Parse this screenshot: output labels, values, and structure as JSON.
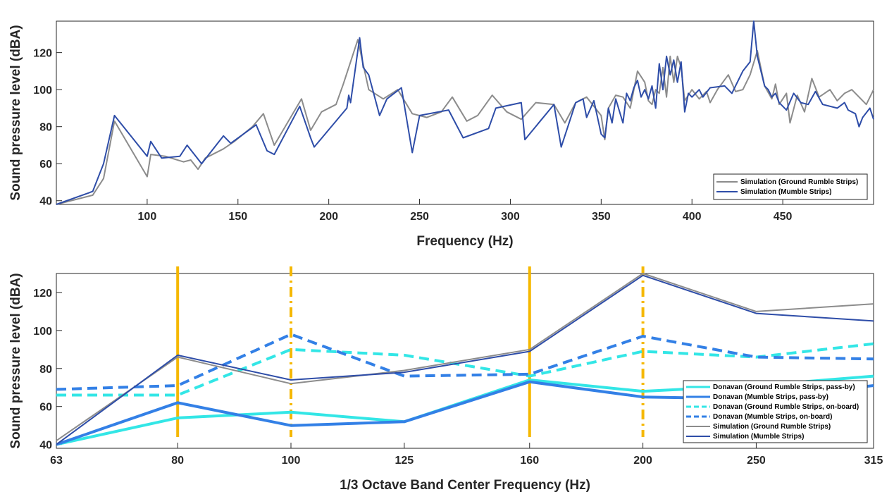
{
  "chart_data": [
    {
      "type": "line",
      "xlabel": "Frequency (Hz)",
      "ylabel": "Sound pressure level (dBA)",
      "xlim": [
        50,
        500
      ],
      "ylim": [
        38,
        137
      ],
      "xticks": [
        100,
        150,
        200,
        250,
        300,
        350,
        400,
        450
      ],
      "yticks": [
        40,
        60,
        80,
        100,
        120
      ],
      "legend_position": "bottom-right",
      "series": [
        {
          "name": "Simulation (Ground Rumble Strips)",
          "color": "#8c8c8c",
          "points": [
            [
              50,
              38
            ],
            [
              70,
              43
            ],
            [
              76,
              52
            ],
            [
              82,
              83
            ],
            [
              100,
              53
            ],
            [
              102,
              65
            ],
            [
              110,
              64
            ],
            [
              120,
              61
            ],
            [
              124,
              62
            ],
            [
              128,
              57
            ],
            [
              132,
              63
            ],
            [
              142,
              68
            ],
            [
              148,
              72
            ],
            [
              158,
              80
            ],
            [
              164,
              87
            ],
            [
              170,
              70
            ],
            [
              185,
              95
            ],
            [
              190,
              78
            ],
            [
              196,
              88
            ],
            [
              204,
              92
            ],
            [
              208,
              103
            ],
            [
              216,
              127
            ],
            [
              222,
              100
            ],
            [
              230,
              95
            ],
            [
              238,
              100
            ],
            [
              246,
              87
            ],
            [
              254,
              85
            ],
            [
              262,
              88
            ],
            [
              268,
              96
            ],
            [
              276,
              83
            ],
            [
              282,
              86
            ],
            [
              290,
              97
            ],
            [
              298,
              88
            ],
            [
              306,
              84
            ],
            [
              314,
              93
            ],
            [
              324,
              92
            ],
            [
              330,
              82
            ],
            [
              336,
              93
            ],
            [
              342,
              96
            ],
            [
              350,
              86
            ],
            [
              352,
              73
            ],
            [
              354,
              90
            ],
            [
              358,
              97
            ],
            [
              362,
              96
            ],
            [
              366,
              90
            ],
            [
              370,
              110
            ],
            [
              374,
              104
            ],
            [
              376,
              94
            ],
            [
              378,
              92
            ],
            [
              380,
              100
            ],
            [
              382,
              98
            ],
            [
              384,
              112
            ],
            [
              386,
              96
            ],
            [
              388,
              118
            ],
            [
              390,
              104
            ],
            [
              392,
              118
            ],
            [
              394,
              112
            ],
            [
              396,
              94
            ],
            [
              400,
              100
            ],
            [
              404,
              95
            ],
            [
              408,
              99
            ],
            [
              410,
              93
            ],
            [
              414,
              100
            ],
            [
              420,
              108
            ],
            [
              424,
              99
            ],
            [
              428,
              100
            ],
            [
              432,
              108
            ],
            [
              436,
              121
            ],
            [
              440,
              102
            ],
            [
              444,
              95
            ],
            [
              446,
              103
            ],
            [
              448,
              92
            ],
            [
              452,
              98
            ],
            [
              454,
              82
            ],
            [
              458,
              97
            ],
            [
              462,
              88
            ],
            [
              466,
              106
            ],
            [
              470,
              96
            ],
            [
              476,
              100
            ],
            [
              480,
              94
            ],
            [
              484,
              98
            ],
            [
              488,
              100
            ],
            [
              492,
              96
            ],
            [
              496,
              92
            ],
            [
              500,
              100
            ]
          ]
        },
        {
          "name": "Simulation (Mumble Strips)",
          "color": "#2e4da8",
          "points": [
            [
              50,
              38
            ],
            [
              70,
              45
            ],
            [
              76,
              60
            ],
            [
              82,
              86
            ],
            [
              100,
              64
            ],
            [
              102,
              72
            ],
            [
              108,
              63
            ],
            [
              118,
              64
            ],
            [
              122,
              70
            ],
            [
              130,
              60
            ],
            [
              142,
              75
            ],
            [
              146,
              71
            ],
            [
              160,
              81
            ],
            [
              166,
              67
            ],
            [
              170,
              65
            ],
            [
              184,
              91
            ],
            [
              190,
              74
            ],
            [
              192,
              69
            ],
            [
              210,
              90
            ],
            [
              211,
              97
            ],
            [
              212,
              93
            ],
            [
              217,
              128
            ],
            [
              219,
              112
            ],
            [
              222,
              108
            ],
            [
              228,
              86
            ],
            [
              232,
              95
            ],
            [
              240,
              101
            ],
            [
              246,
              66
            ],
            [
              250,
              86
            ],
            [
              266,
              89
            ],
            [
              274,
              74
            ],
            [
              288,
              79
            ],
            [
              292,
              90
            ],
            [
              306,
              93
            ],
            [
              308,
              73
            ],
            [
              324,
              92
            ],
            [
              328,
              69
            ],
            [
              336,
              93
            ],
            [
              340,
              95
            ],
            [
              342,
              85
            ],
            [
              346,
              94
            ],
            [
              350,
              76
            ],
            [
              352,
              74
            ],
            [
              354,
              90
            ],
            [
              356,
              82
            ],
            [
              358,
              95
            ],
            [
              362,
              82
            ],
            [
              364,
              98
            ],
            [
              366,
              94
            ],
            [
              368,
              101
            ],
            [
              370,
              105
            ],
            [
              372,
              96
            ],
            [
              374,
              100
            ],
            [
              376,
              95
            ],
            [
              378,
              102
            ],
            [
              380,
              90
            ],
            [
              382,
              114
            ],
            [
              384,
              100
            ],
            [
              386,
              118
            ],
            [
              388,
              108
            ],
            [
              390,
              116
            ],
            [
              392,
              104
            ],
            [
              394,
              115
            ],
            [
              396,
              88
            ],
            [
              398,
              98
            ],
            [
              400,
              96
            ],
            [
              404,
              100
            ],
            [
              406,
              96
            ],
            [
              410,
              101
            ],
            [
              418,
              102
            ],
            [
              422,
              98
            ],
            [
              428,
              110
            ],
            [
              432,
              115
            ],
            [
              434,
              137
            ],
            [
              436,
              118
            ],
            [
              440,
              102
            ],
            [
              442,
              100
            ],
            [
              444,
              96
            ],
            [
              446,
              98
            ],
            [
              448,
              93
            ],
            [
              452,
              89
            ],
            [
              456,
              98
            ],
            [
              460,
              93
            ],
            [
              464,
              92
            ],
            [
              468,
              99
            ],
            [
              472,
              92
            ],
            [
              480,
              90
            ],
            [
              484,
              93
            ],
            [
              486,
              89
            ],
            [
              490,
              87
            ],
            [
              492,
              80
            ],
            [
              494,
              85
            ],
            [
              498,
              90
            ],
            [
              500,
              84
            ]
          ]
        }
      ]
    },
    {
      "type": "line",
      "xlabel": "1/3 Octave Band Center Frequency (Hz)",
      "ylabel": "Sound pressure level (dBA)",
      "categories": [
        "63",
        "80",
        "100",
        "125",
        "160",
        "200",
        "250",
        "315"
      ],
      "ylim": [
        38,
        130
      ],
      "yticks": [
        40,
        60,
        80,
        100,
        120
      ],
      "legend_position": "bottom-right",
      "vertical_markers": [
        {
          "x": "80",
          "style": "solid",
          "color": "#f5b800"
        },
        {
          "x": "100",
          "style": "dashdot",
          "color": "#f5b800"
        },
        {
          "x": "160",
          "style": "solid",
          "color": "#f5b800"
        },
        {
          "x": "200",
          "style": "dashdot",
          "color": "#f5b800"
        }
      ],
      "series": [
        {
          "name": "Donavan (Ground Rumble Strips, pass-by)",
          "color": "#33e6e6",
          "style": "solid",
          "width": 4,
          "values": [
            40,
            54,
            57,
            52,
            74,
            68,
            71,
            76
          ]
        },
        {
          "name": "Donavan (Mumble Strips, pass-by)",
          "color": "#3380e6",
          "style": "solid",
          "width": 4,
          "values": [
            40,
            62,
            50,
            52,
            73,
            65,
            64,
            71
          ]
        },
        {
          "name": "Donavan (Ground Rumble Strips, on-board)",
          "color": "#33e6e6",
          "style": "dashed",
          "width": 4,
          "values": [
            66,
            66,
            90,
            87,
            76,
            89,
            86,
            93
          ]
        },
        {
          "name": "Donavan (Mumble Strips, on-board)",
          "color": "#3380e6",
          "style": "dashed",
          "width": 4,
          "values": [
            69,
            71,
            98,
            76,
            77,
            97,
            86,
            85
          ]
        },
        {
          "name": "Simulation (Ground Rumble Strips)",
          "color": "#8c8c8c",
          "style": "solid",
          "width": 2,
          "values": [
            42,
            86,
            72,
            79,
            90,
            130,
            110,
            114
          ]
        },
        {
          "name": "Simulation (Mumble Strips)",
          "color": "#2e4da8",
          "style": "solid",
          "width": 2,
          "values": [
            40,
            87,
            74,
            78,
            89,
            129,
            109,
            105
          ]
        }
      ]
    }
  ]
}
